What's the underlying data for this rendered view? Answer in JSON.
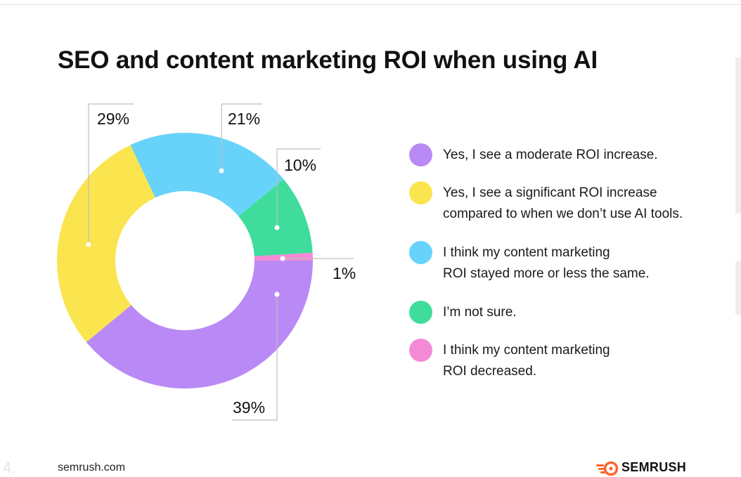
{
  "title": "SEO and content marketing ROI when using AI",
  "footer": {
    "site": "semrush.com",
    "page_number": "4.",
    "brand": "SEMRUSH"
  },
  "colors": {
    "moderate": "#b98af5",
    "significant": "#fbe54f",
    "same": "#67d3fa",
    "not_sure": "#3fdc9c",
    "decreased": "#f48ad6",
    "accent_logo": "#ff642d"
  },
  "chart_data": {
    "type": "pie",
    "title": "SEO and content marketing ROI when using AI",
    "donut": true,
    "labels": [
      "Yes, I see a moderate ROI increase.",
      "Yes, I see a significant ROI increase compared to when we don’t use AI tools.",
      "I think my content marketing ROI stayed more or less the same.",
      "I’m not sure.",
      "I think my content marketing ROI decreased."
    ],
    "values": [
      39,
      29,
      21,
      10,
      1
    ],
    "value_labels": [
      "39%",
      "29%",
      "21%",
      "10%",
      "1%"
    ],
    "legend_position": "right"
  },
  "legend": [
    {
      "lines": [
        "Yes, I see a moderate ROI increase."
      ],
      "color_key": "moderate"
    },
    {
      "lines": [
        "Yes, I see a significant ROI increase",
        "compared to when we don’t use AI tools."
      ],
      "color_key": "significant"
    },
    {
      "lines": [
        "I think my content marketing",
        "ROI stayed more or less the same."
      ],
      "color_key": "same"
    },
    {
      "lines": [
        "I’m not sure."
      ],
      "color_key": "not_sure"
    },
    {
      "lines": [
        "I think my content marketing",
        "ROI decreased."
      ],
      "color_key": "decreased"
    }
  ]
}
